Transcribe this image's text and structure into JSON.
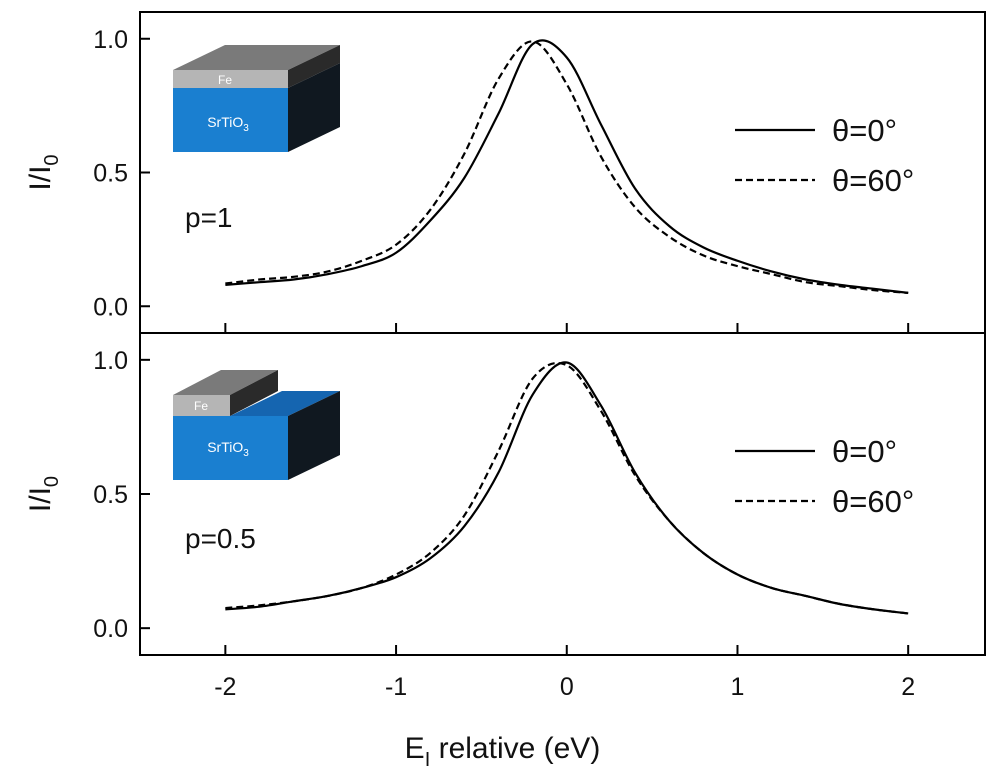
{
  "chart_data": [
    {
      "type": "line",
      "ylabel": {
        "text": "I/I",
        "sub": "0"
      },
      "annotation": "p=1",
      "inset_labels": {
        "top": "Fe",
        "bottom": {
          "text": "SrTiO",
          "sub": "3"
        }
      },
      "x": [
        -2,
        -1.8,
        -1.6,
        -1.4,
        -1.2,
        -1.0,
        -0.8,
        -0.6,
        -0.4,
        -0.2,
        0,
        0.2,
        0.4,
        0.6,
        0.8,
        1.0,
        1.2,
        1.4,
        1.6,
        1.8,
        2.0
      ],
      "series": [
        {
          "name": "θ=0°",
          "color": "#000000",
          "dash": "solid",
          "values": [
            0.08,
            0.09,
            0.1,
            0.12,
            0.15,
            0.2,
            0.32,
            0.48,
            0.72,
            0.98,
            0.93,
            0.68,
            0.44,
            0.3,
            0.22,
            0.17,
            0.13,
            0.1,
            0.08,
            0.065,
            0.05
          ]
        },
        {
          "name": "θ=60°",
          "color": "#000000",
          "dash": "dashed",
          "values": [
            0.085,
            0.1,
            0.11,
            0.13,
            0.17,
            0.23,
            0.36,
            0.57,
            0.85,
            0.99,
            0.83,
            0.56,
            0.37,
            0.26,
            0.19,
            0.15,
            0.12,
            0.09,
            0.075,
            0.06,
            0.05
          ]
        }
      ],
      "xlim": [
        -2.5,
        2.45
      ],
      "ylim": [
        -0.1,
        1.1
      ],
      "xticks": [
        -2,
        -1,
        0,
        1,
        2
      ],
      "yticks": [
        {
          "value": 0,
          "label": "0.0"
        },
        {
          "value": 0.5,
          "label": "0.5"
        },
        {
          "value": 1,
          "label": "1.0"
        }
      ],
      "show_xtick_labels": false
    },
    {
      "type": "line",
      "ylabel": {
        "text": "I/I",
        "sub": "0"
      },
      "xlabel": {
        "text": "E",
        "sub": "I",
        "rest": " relative (eV)"
      },
      "annotation": "p=0.5",
      "inset_labels": {
        "top": "Fe",
        "bottom": {
          "text": "SrTiO",
          "sub": "3"
        }
      },
      "x": [
        -2,
        -1.8,
        -1.6,
        -1.4,
        -1.2,
        -1.0,
        -0.8,
        -0.6,
        -0.4,
        -0.2,
        0,
        0.2,
        0.4,
        0.6,
        0.8,
        1.0,
        1.2,
        1.4,
        1.6,
        1.8,
        2.0
      ],
      "series": [
        {
          "name": "θ=0°",
          "color": "#000000",
          "dash": "solid",
          "values": [
            0.07,
            0.08,
            0.1,
            0.12,
            0.15,
            0.19,
            0.26,
            0.38,
            0.58,
            0.87,
            0.99,
            0.83,
            0.58,
            0.4,
            0.28,
            0.2,
            0.15,
            0.12,
            0.09,
            0.07,
            0.055
          ]
        },
        {
          "name": "θ=60°",
          "color": "#000000",
          "dash": "dashed",
          "values": [
            0.075,
            0.085,
            0.1,
            0.12,
            0.15,
            0.2,
            0.28,
            0.42,
            0.66,
            0.93,
            0.98,
            0.81,
            0.57,
            0.4,
            0.28,
            0.2,
            0.15,
            0.12,
            0.09,
            0.07,
            0.055
          ]
        }
      ],
      "xlim": [
        -2.5,
        2.45
      ],
      "ylim": [
        -0.1,
        1.1
      ],
      "xticks": [
        -2,
        -1,
        0,
        1,
        2
      ],
      "yticks": [
        {
          "value": 0,
          "label": "0.0"
        },
        {
          "value": 0.5,
          "label": "0.5"
        },
        {
          "value": 1,
          "label": "1.0"
        }
      ],
      "show_xtick_labels": true
    }
  ]
}
